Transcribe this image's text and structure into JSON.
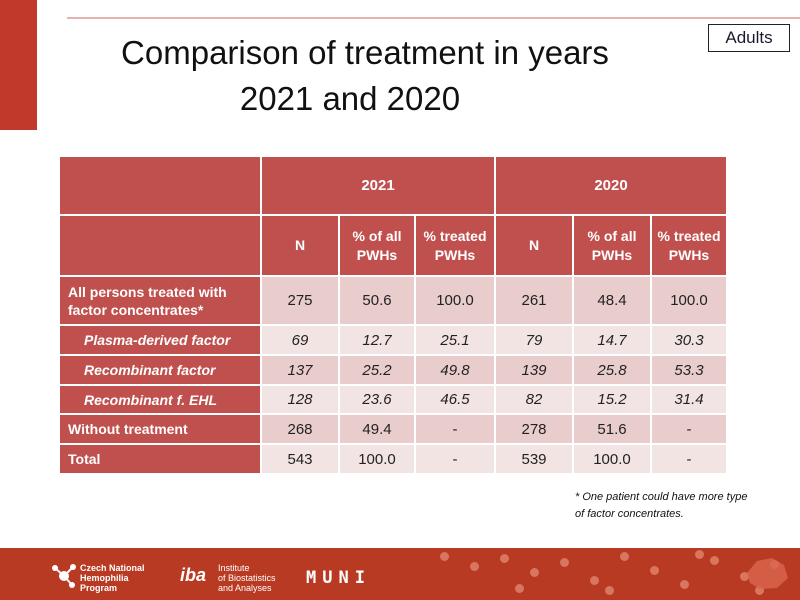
{
  "badge": "Adults",
  "title": {
    "line1": "Comparison of treatment in years",
    "line2": "2021 and 2020"
  },
  "table": {
    "years": [
      "2021",
      "2020"
    ],
    "col_headers": [
      [
        "N"
      ],
      [
        "% of all",
        "PWHs"
      ],
      [
        "% treated",
        "PWHs"
      ]
    ],
    "rows": [
      {
        "label": [
          "All persons treated with",
          "factor concentrates*"
        ],
        "values": [
          "275",
          "50.6",
          "100.0",
          "261",
          "48.4",
          "100.0"
        ]
      },
      {
        "label": [
          "Plasma-derived factor"
        ],
        "values": [
          "69",
          "12.7",
          "25.1",
          "79",
          "14.7",
          "30.3"
        ]
      },
      {
        "label": [
          "Recombinant factor"
        ],
        "values": [
          "137",
          "25.2",
          "49.8",
          "139",
          "25.8",
          "53.3"
        ]
      },
      {
        "label": [
          "Recombinant f. EHL"
        ],
        "values": [
          "128",
          "23.6",
          "46.5",
          "82",
          "15.2",
          "31.4"
        ]
      },
      {
        "label": [
          "Without treatment"
        ],
        "values": [
          "268",
          "49.4",
          "-",
          "278",
          "51.6",
          "-"
        ]
      },
      {
        "label": [
          "Total"
        ],
        "values": [
          "543",
          "100.0",
          "-",
          "539",
          "100.0",
          "-"
        ]
      }
    ]
  },
  "footnote": [
    "* One patient could have more type",
    "of factor concentrates."
  ],
  "footer": {
    "logo1": [
      "Czech National",
      "Hemophilia",
      "Program"
    ],
    "logo2_mark": "iba",
    "logo2": [
      "Institute",
      "of Biostatistics",
      "and Analyses"
    ],
    "logo3": "MUNI"
  }
}
